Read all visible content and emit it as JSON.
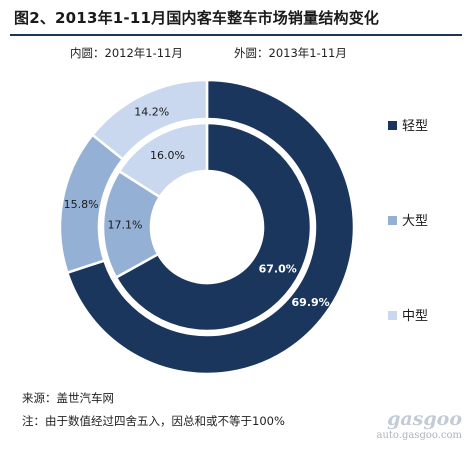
{
  "chart_data": {
    "type": "pie",
    "title": "图2、2013年1-11月国内客车整车市场销量结构变化",
    "inner_label": "内圆：2012年1-11月",
    "outer_label": "外圆：2013年1-11月",
    "categories": [
      "轻型",
      "大型",
      "中型"
    ],
    "colors": [
      "#1b365d",
      "#94b1d5",
      "#c9d8ee"
    ],
    "series": [
      {
        "ring": "inner",
        "values": [
          67.0,
          17.1,
          16.0
        ]
      },
      {
        "ring": "outer",
        "values": [
          69.9,
          15.8,
          14.2
        ]
      }
    ],
    "legend": "right"
  },
  "source": "来源：盖世汽车网",
  "note": "注：由于数值经过四舍五入，因总和或不等于100%",
  "watermark": {
    "brand": "gasgoo",
    "site": "auto.gasgoo.com"
  }
}
